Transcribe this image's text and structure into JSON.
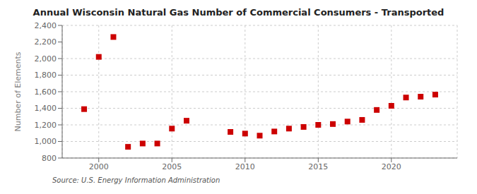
{
  "chart_data": {
    "type": "scatter",
    "title": "Annual Wisconsin Natural Gas Number of Commercial Consumers - Transported",
    "y_label": "Number of Elements",
    "source": "Source: U.S. Energy Information Administration",
    "x": [
      1999,
      2000,
      2001,
      2002,
      2003,
      2004,
      2005,
      2006,
      2009,
      2010,
      2011,
      2012,
      2013,
      2014,
      2015,
      2016,
      2017,
      2018,
      2019,
      2020,
      2021,
      2022,
      2023
    ],
    "values": [
      1390,
      2020,
      2260,
      935,
      975,
      975,
      1155,
      1250,
      1115,
      1095,
      1070,
      1120,
      1155,
      1175,
      1200,
      1210,
      1240,
      1260,
      1380,
      1430,
      1530,
      1540,
      1565
    ],
    "xlim": [
      1997.5,
      2024.5
    ],
    "xticks": [
      2000,
      2005,
      2010,
      2015,
      2020
    ],
    "ylim": [
      800,
      2400
    ],
    "yticks": [
      800,
      {
        "value": 1000,
        "label": "1,000"
      },
      {
        "value": 1200,
        "label": "1,200"
      },
      {
        "value": 1400,
        "label": "1,400"
      },
      {
        "value": 1600,
        "label": "1,600"
      },
      {
        "value": 1800,
        "label": "1,800"
      },
      {
        "value": 2000,
        "label": "2,000"
      },
      {
        "value": 2200,
        "label": "2,200"
      },
      {
        "value": 2400,
        "label": "2,400"
      }
    ],
    "color": "#cc0000",
    "marker": "square",
    "grid": true
  }
}
